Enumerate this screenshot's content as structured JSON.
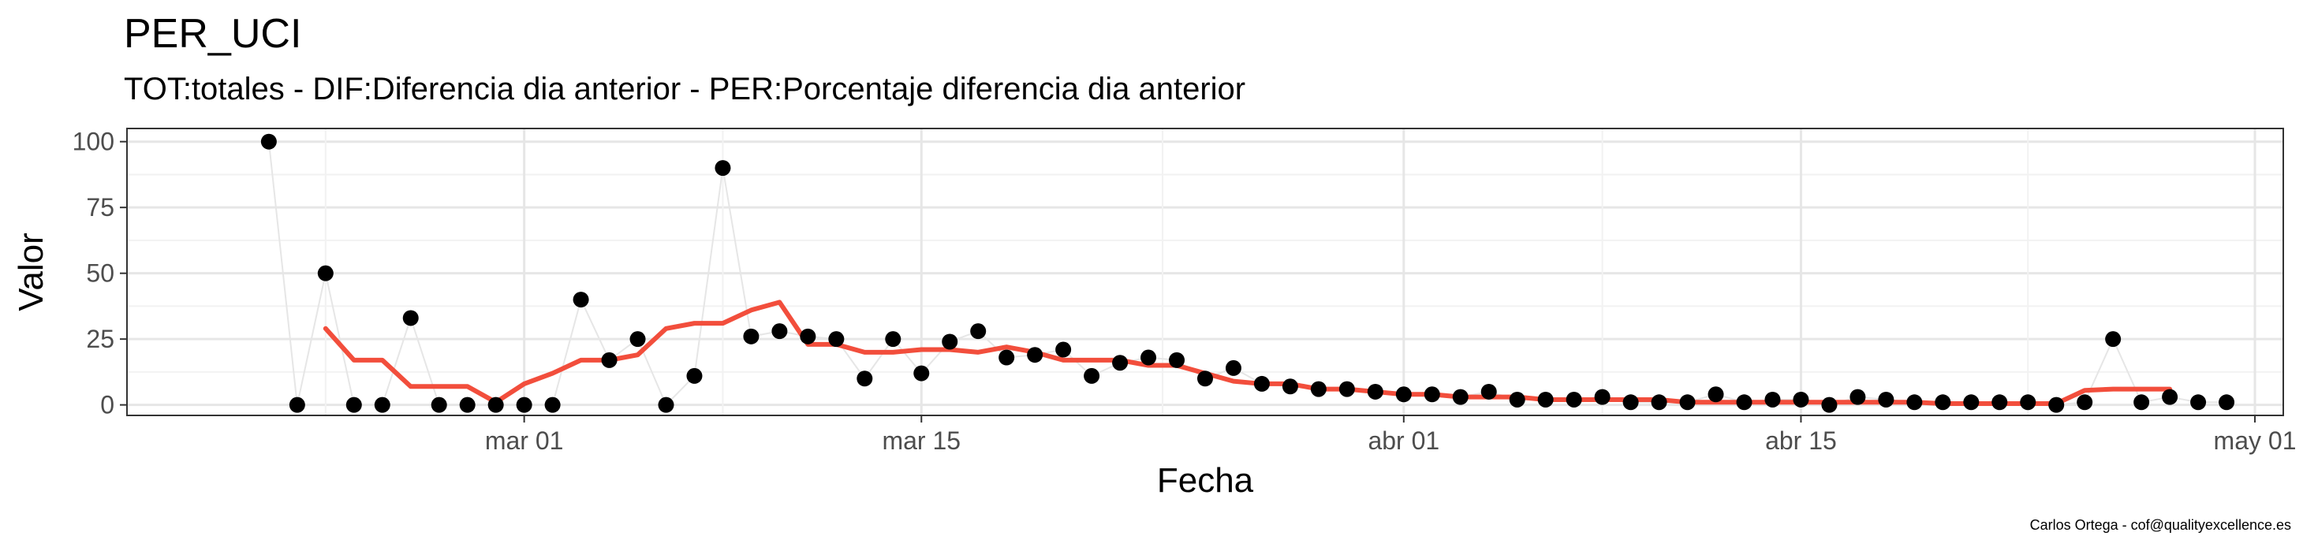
{
  "chart_data": {
    "type": "scatter",
    "title": "PER_UCI",
    "subtitle": "TOT:totales - DIF:Diferencia dia anterior - PER:Porcentaje diferencia dia anterior",
    "xlabel": "Fecha",
    "ylabel": "Valor",
    "caption": "Carlos Ortega - cof@qualityexcellence.es",
    "x_axis": {
      "type": "date",
      "range": [
        "2020-02-16",
        "2020-05-02"
      ],
      "ticks": [
        "2020-03-01",
        "2020-03-15",
        "2020-04-01",
        "2020-04-15",
        "2020-05-01"
      ],
      "tick_labels": [
        "mar 01",
        "mar 15",
        "abr 01",
        "abr 15",
        "may 01"
      ]
    },
    "y_axis": {
      "range": [
        -4,
        105
      ],
      "ticks": [
        0,
        25,
        50,
        75,
        100
      ],
      "tick_labels": [
        "0",
        "25",
        "50",
        "75",
        "100"
      ]
    },
    "grid": true,
    "series": [
      {
        "type": "points",
        "color": "#000000",
        "connector_color": "#e6e6e6",
        "x": [
          "2020-02-21",
          "2020-02-22",
          "2020-02-23",
          "2020-02-24",
          "2020-02-25",
          "2020-02-26",
          "2020-02-27",
          "2020-02-28",
          "2020-02-29",
          "2020-03-01",
          "2020-03-02",
          "2020-03-03",
          "2020-03-04",
          "2020-03-05",
          "2020-03-06",
          "2020-03-07",
          "2020-03-08",
          "2020-03-09",
          "2020-03-10",
          "2020-03-11",
          "2020-03-12",
          "2020-03-13",
          "2020-03-14",
          "2020-03-15",
          "2020-03-16",
          "2020-03-17",
          "2020-03-18",
          "2020-03-19",
          "2020-03-20",
          "2020-03-21",
          "2020-03-22",
          "2020-03-23",
          "2020-03-24",
          "2020-03-25",
          "2020-03-26",
          "2020-03-27",
          "2020-03-28",
          "2020-03-29",
          "2020-03-30",
          "2020-03-31",
          "2020-04-01",
          "2020-04-02",
          "2020-04-03",
          "2020-04-04",
          "2020-04-05",
          "2020-04-06",
          "2020-04-07",
          "2020-04-08",
          "2020-04-09",
          "2020-04-10",
          "2020-04-11",
          "2020-04-12",
          "2020-04-13",
          "2020-04-14",
          "2020-04-15",
          "2020-04-16",
          "2020-04-17",
          "2020-04-18",
          "2020-04-19",
          "2020-04-20",
          "2020-04-21",
          "2020-04-22",
          "2020-04-23",
          "2020-04-24",
          "2020-04-25",
          "2020-04-26",
          "2020-04-27",
          "2020-04-28",
          "2020-04-29",
          "2020-04-30"
        ],
        "y": [
          100,
          0,
          50,
          0,
          0,
          33,
          0,
          0,
          0,
          0,
          0,
          40,
          17,
          25,
          0,
          11,
          90,
          26,
          28,
          26,
          25,
          10,
          25,
          12,
          24,
          28,
          18,
          19,
          21,
          11,
          16,
          18,
          17,
          10,
          14,
          8,
          7,
          6,
          6,
          5,
          4,
          4,
          3,
          5,
          2,
          2,
          2,
          3,
          1,
          1,
          1,
          4,
          1,
          2,
          2,
          0,
          3,
          2,
          1,
          1,
          1,
          1,
          1,
          0,
          1,
          25,
          1,
          3,
          1,
          1
        ]
      },
      {
        "type": "line",
        "name": "",
        "color": "#f24e3c",
        "x": [
          "2020-02-23",
          "2020-02-24",
          "2020-02-25",
          "2020-02-26",
          "2020-02-27",
          "2020-02-28",
          "2020-02-29",
          "2020-03-01",
          "2020-03-02",
          "2020-03-03",
          "2020-03-04",
          "2020-03-05",
          "2020-03-06",
          "2020-03-07",
          "2020-03-08",
          "2020-03-09",
          "2020-03-10",
          "2020-03-11",
          "2020-03-12",
          "2020-03-13",
          "2020-03-14",
          "2020-03-15",
          "2020-03-16",
          "2020-03-17",
          "2020-03-18",
          "2020-03-19",
          "2020-03-20",
          "2020-03-21",
          "2020-03-22",
          "2020-03-23",
          "2020-03-24",
          "2020-03-25",
          "2020-03-26",
          "2020-03-27",
          "2020-03-28",
          "2020-03-29",
          "2020-03-30",
          "2020-03-31",
          "2020-04-01",
          "2020-04-02",
          "2020-04-03",
          "2020-04-04",
          "2020-04-05",
          "2020-04-06",
          "2020-04-07",
          "2020-04-08",
          "2020-04-09",
          "2020-04-10",
          "2020-04-11",
          "2020-04-12",
          "2020-04-13",
          "2020-04-14",
          "2020-04-15",
          "2020-04-16",
          "2020-04-17",
          "2020-04-18",
          "2020-04-19",
          "2020-04-20",
          "2020-04-21",
          "2020-04-22",
          "2020-04-23",
          "2020-04-24",
          "2020-04-25",
          "2020-04-26",
          "2020-04-27",
          "2020-04-28"
        ],
        "y": [
          29,
          17,
          17,
          7,
          7,
          7,
          1,
          8,
          12,
          17,
          17,
          19,
          29,
          31,
          31,
          36,
          39,
          23,
          23,
          20,
          20,
          21,
          21,
          20,
          22,
          20,
          17,
          17,
          17,
          15,
          15,
          12,
          9,
          8,
          8,
          6,
          6,
          5,
          4,
          4,
          3,
          3,
          3,
          2,
          2,
          2,
          2,
          2,
          1,
          1,
          1,
          1,
          1,
          1,
          1,
          1,
          1,
          0.5,
          0.5,
          0.5,
          0.5,
          0.5,
          5.5,
          6,
          6,
          6
        ]
      }
    ]
  }
}
